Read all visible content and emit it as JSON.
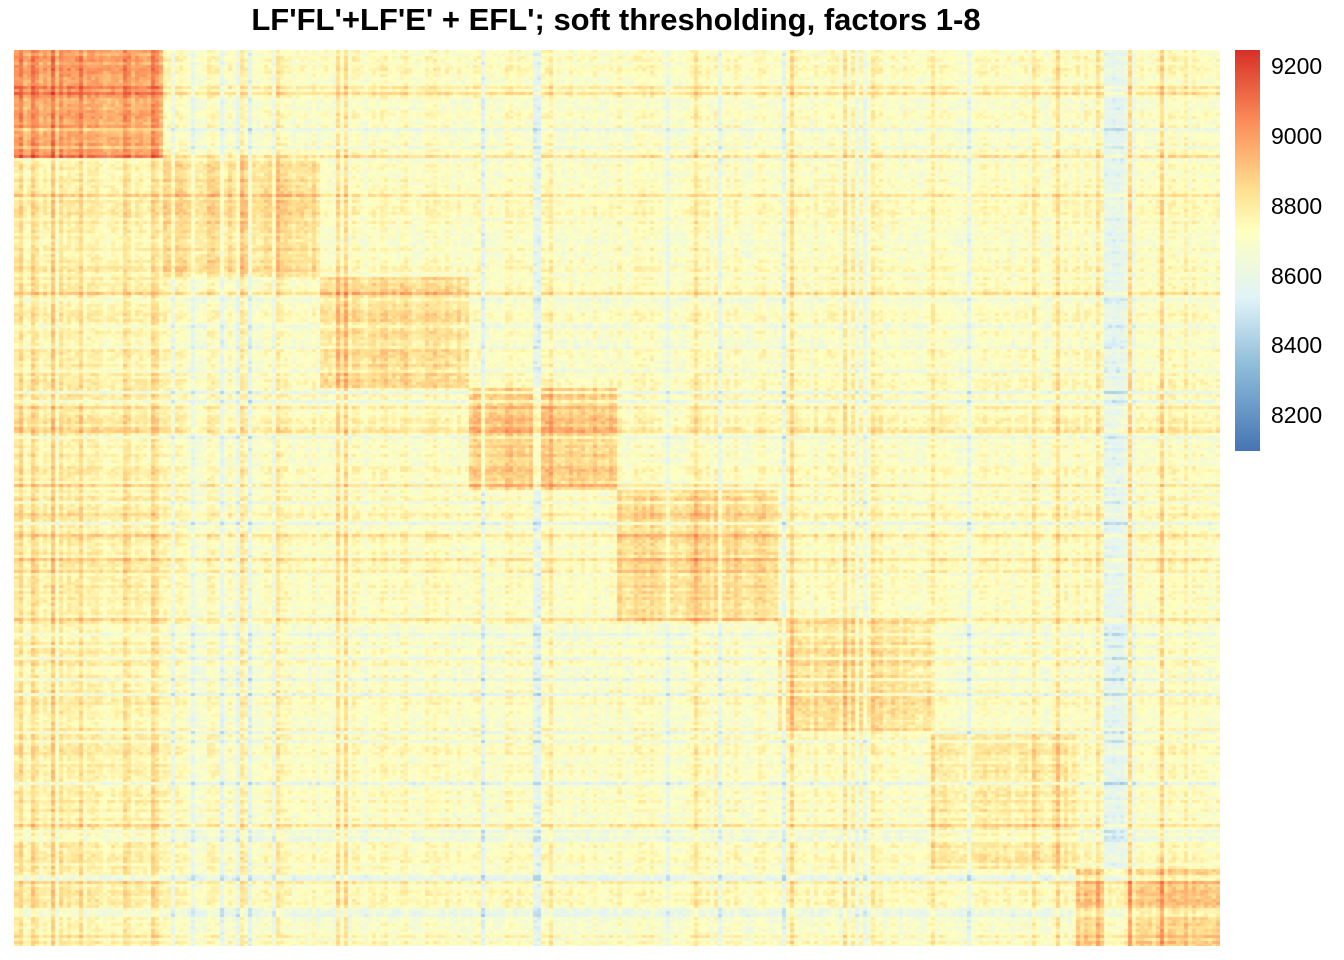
{
  "chart_data": {
    "type": "heatmap",
    "title": "LF'FL'+LF'E' + EFL'; soft thresholding, factors 1-8",
    "xlabel": "",
    "ylabel": "",
    "value_range": [
      8100,
      9250
    ],
    "legend": {
      "placement": "right",
      "ticks": [
        8200,
        8400,
        8600,
        8800,
        9000,
        9200
      ],
      "colors": [
        "#4575b4",
        "#91bfdb",
        "#e0f3f8",
        "#ffffbf",
        "#fee090",
        "#fc8d59",
        "#d73027"
      ]
    },
    "block_structure": {
      "description_values": "approximate mean cell value per factor block along diagonal",
      "blocks": [
        {
          "factor": 1,
          "value": 8950
        },
        {
          "factor": 2,
          "value": 8850
        },
        {
          "factor": 3,
          "value": 8850
        },
        {
          "factor": 4,
          "value": 8900
        },
        {
          "factor": 5,
          "value": 8850
        },
        {
          "factor": 6,
          "value": 8850
        },
        {
          "factor": 7,
          "value": 8800
        },
        {
          "factor": 8,
          "value": 8900
        }
      ],
      "background_value": 8720
    }
  }
}
